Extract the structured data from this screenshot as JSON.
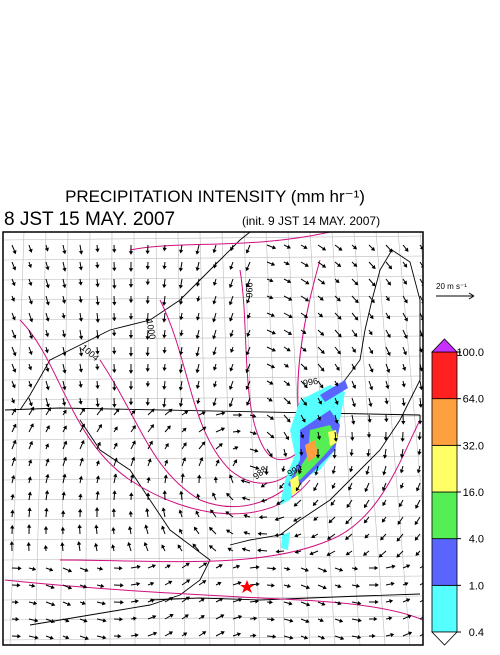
{
  "header": {
    "title": "PRECIPITATION INTENSITY (mm hr⁻¹)",
    "valid_time": "8 JST 15 MAY. 2007",
    "init_time": "(init. 9 JST 14 MAY. 2007)"
  },
  "wind_scale": {
    "label": "20 m s⁻¹"
  },
  "colorbar": {
    "ticks": [
      0.4,
      {
        "value": 1,
        "label": "1.0"
      },
      {
        "value": 4,
        "label": "4.0"
      },
      {
        "value": 16,
        "label": "16.0"
      },
      {
        "value": 32,
        "label": "32.0"
      },
      {
        "value": 64,
        "label": "64.0"
      },
      {
        "value": 100,
        "label": "100.0"
      }
    ],
    "colors": [
      "#55ffff",
      "#5a64ff",
      "#55ee55",
      "#ffff66",
      "#ffa040",
      "#ff2020"
    ],
    "over_color": "#c830ff",
    "under_color": "#ffffff"
  },
  "map": {
    "contour_labels": [
      "996",
      "1000",
      "1004",
      "988",
      "992",
      "996"
    ]
  }
}
